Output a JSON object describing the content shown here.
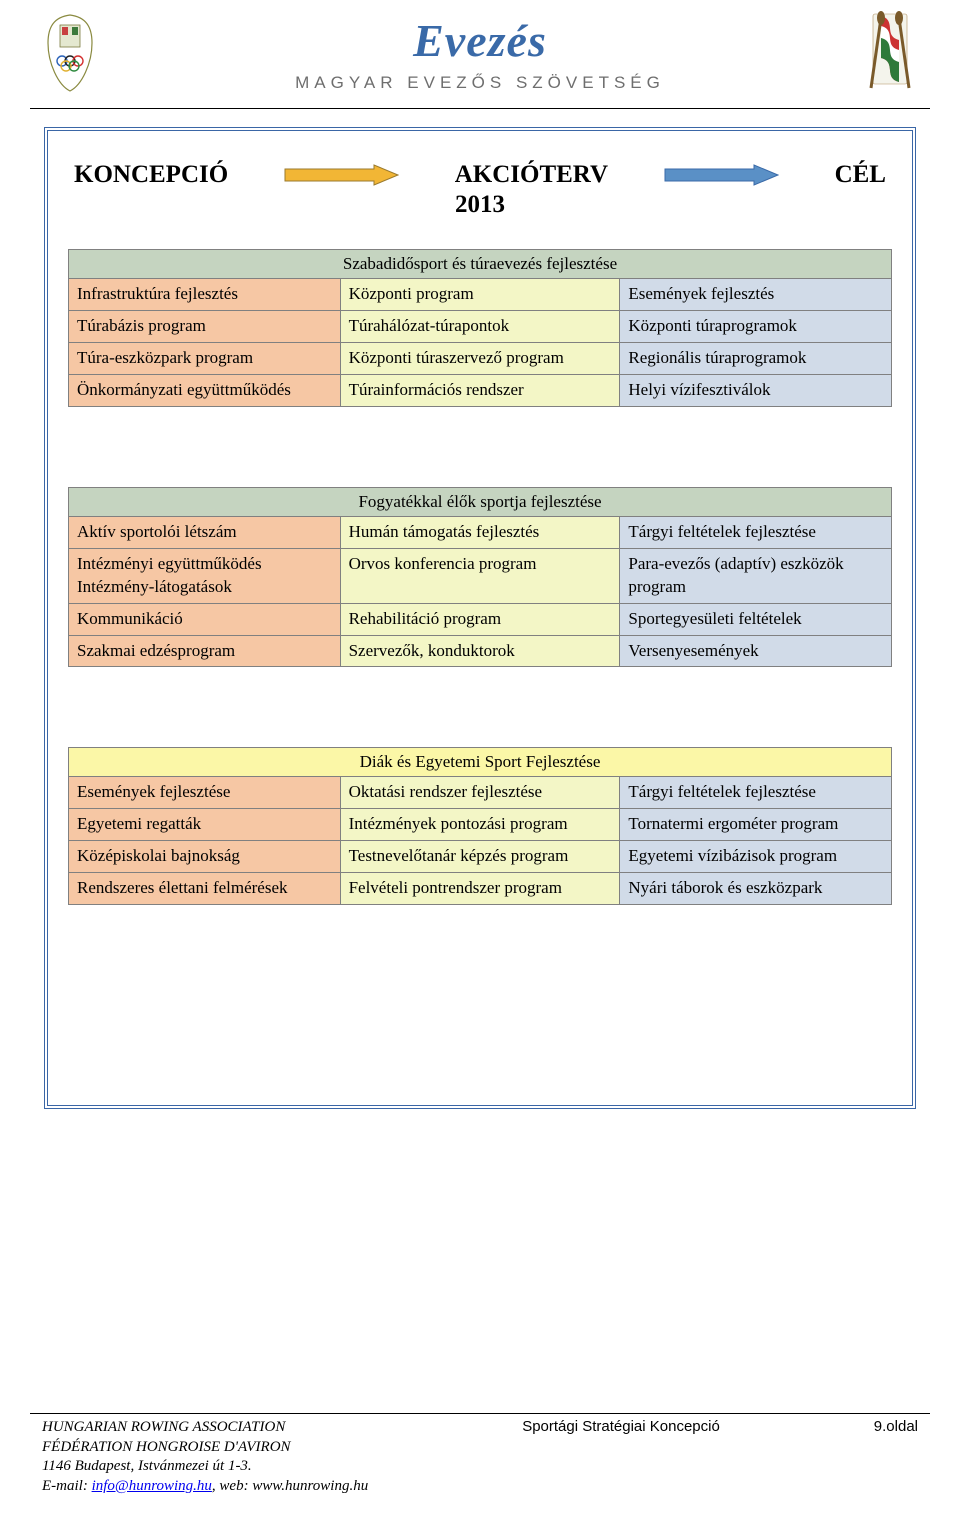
{
  "header": {
    "brand_word": "Evezés",
    "brand_sub": "MAGYAR EVEZŐS SZÖVETSÉG"
  },
  "title": {
    "left": "KONCEPCIÓ",
    "middle": "AKCIÓTERV",
    "right": "CÉL",
    "year": "2013"
  },
  "colors": {
    "table1_header_bg": "#c5d4c0",
    "table1_col1_bg": "#f6c7a4",
    "table1_col2_bg": "#f3f6c6",
    "table1_col3_bg": "#d1dbe8",
    "table2_header_bg": "#c5d4c0",
    "table2_col1_bg": "#f6c7a4",
    "table2_col2_bg": "#f3f6c6",
    "table2_col3_bg": "#d1dbe8",
    "table3_header_bg": "#fbf7a7",
    "table3_col1_bg": "#f6c7a4",
    "table3_col2_bg": "#f3f6c6",
    "table3_col3_bg": "#d1dbe8",
    "arrow1_fill": "#f2b635",
    "arrow1_stroke": "#9a7a2e",
    "arrow2_fill": "#5a90c6",
    "arrow2_stroke": "#3a6aa8",
    "frame_border": "#3a66a6"
  },
  "table1": {
    "header": "Szabadidősport és túraevezés fejlesztése",
    "rows": [
      [
        "Infrastruktúra fejlesztés",
        "Központi program",
        "Események fejlesztés"
      ],
      [
        "Túrabázis program",
        "Túrahálózat-túrapontok",
        "Központi túraprogramok"
      ],
      [
        "Túra-eszközpark program",
        "Központi túraszervező program",
        "Regionális túraprogramok"
      ],
      [
        "Önkormányzati együttműködés",
        "Túrainformációs rendszer",
        "Helyi vízifesztiválok"
      ]
    ]
  },
  "table2": {
    "header": "Fogyatékkal élők sportja fejlesztése",
    "rows": [
      [
        "Aktív sportolói létszám",
        "Humán támogatás fejlesztés",
        "Tárgyi feltételek fejlesztése"
      ],
      [
        "Intézményi együttműködés\nIntézmény-látogatások",
        "Orvos konferencia program",
        "Para-evezős (adaptív) eszközök program"
      ],
      [
        "Kommunikáció",
        "Rehabilitáció program",
        "Sportegyesületi feltételek"
      ],
      [
        "Szakmai edzésprogram",
        "Szervezők, konduktorok",
        "Versenyesemények"
      ]
    ]
  },
  "table3": {
    "header": "Diák és Egyetemi Sport Fejlesztése",
    "rows": [
      [
        "Események fejlesztése",
        "Oktatási rendszer fejlesztése",
        "Tárgyi feltételek fejlesztése"
      ],
      [
        "Egyetemi regatták",
        "Intézmények pontozási program",
        "Tornatermi ergométer program"
      ],
      [
        "Középiskolai bajnokság",
        "Testnevelőtanár képzés program",
        "Egyetemi vízibázisok program"
      ],
      [
        "Rendszeres élettani felmérések",
        "Felvételi pontrendszer program",
        "Nyári táborok és eszközpark"
      ]
    ]
  },
  "footer": {
    "org_en": "HUNGARIAN ROWING ASSOCIATION",
    "org_fr": "FÉDÉRATION HONGROISE D'AVIRON",
    "address": "1146 Budapest, Istvánmezei út 1-3.",
    "email_prefix": "E-mail: ",
    "email": "info@hunrowing.hu",
    "web_prefix": ", web: ",
    "web": "www.hunrowing.hu",
    "center": "Sportági Stratégiai Koncepció",
    "page": "9.oldal"
  }
}
